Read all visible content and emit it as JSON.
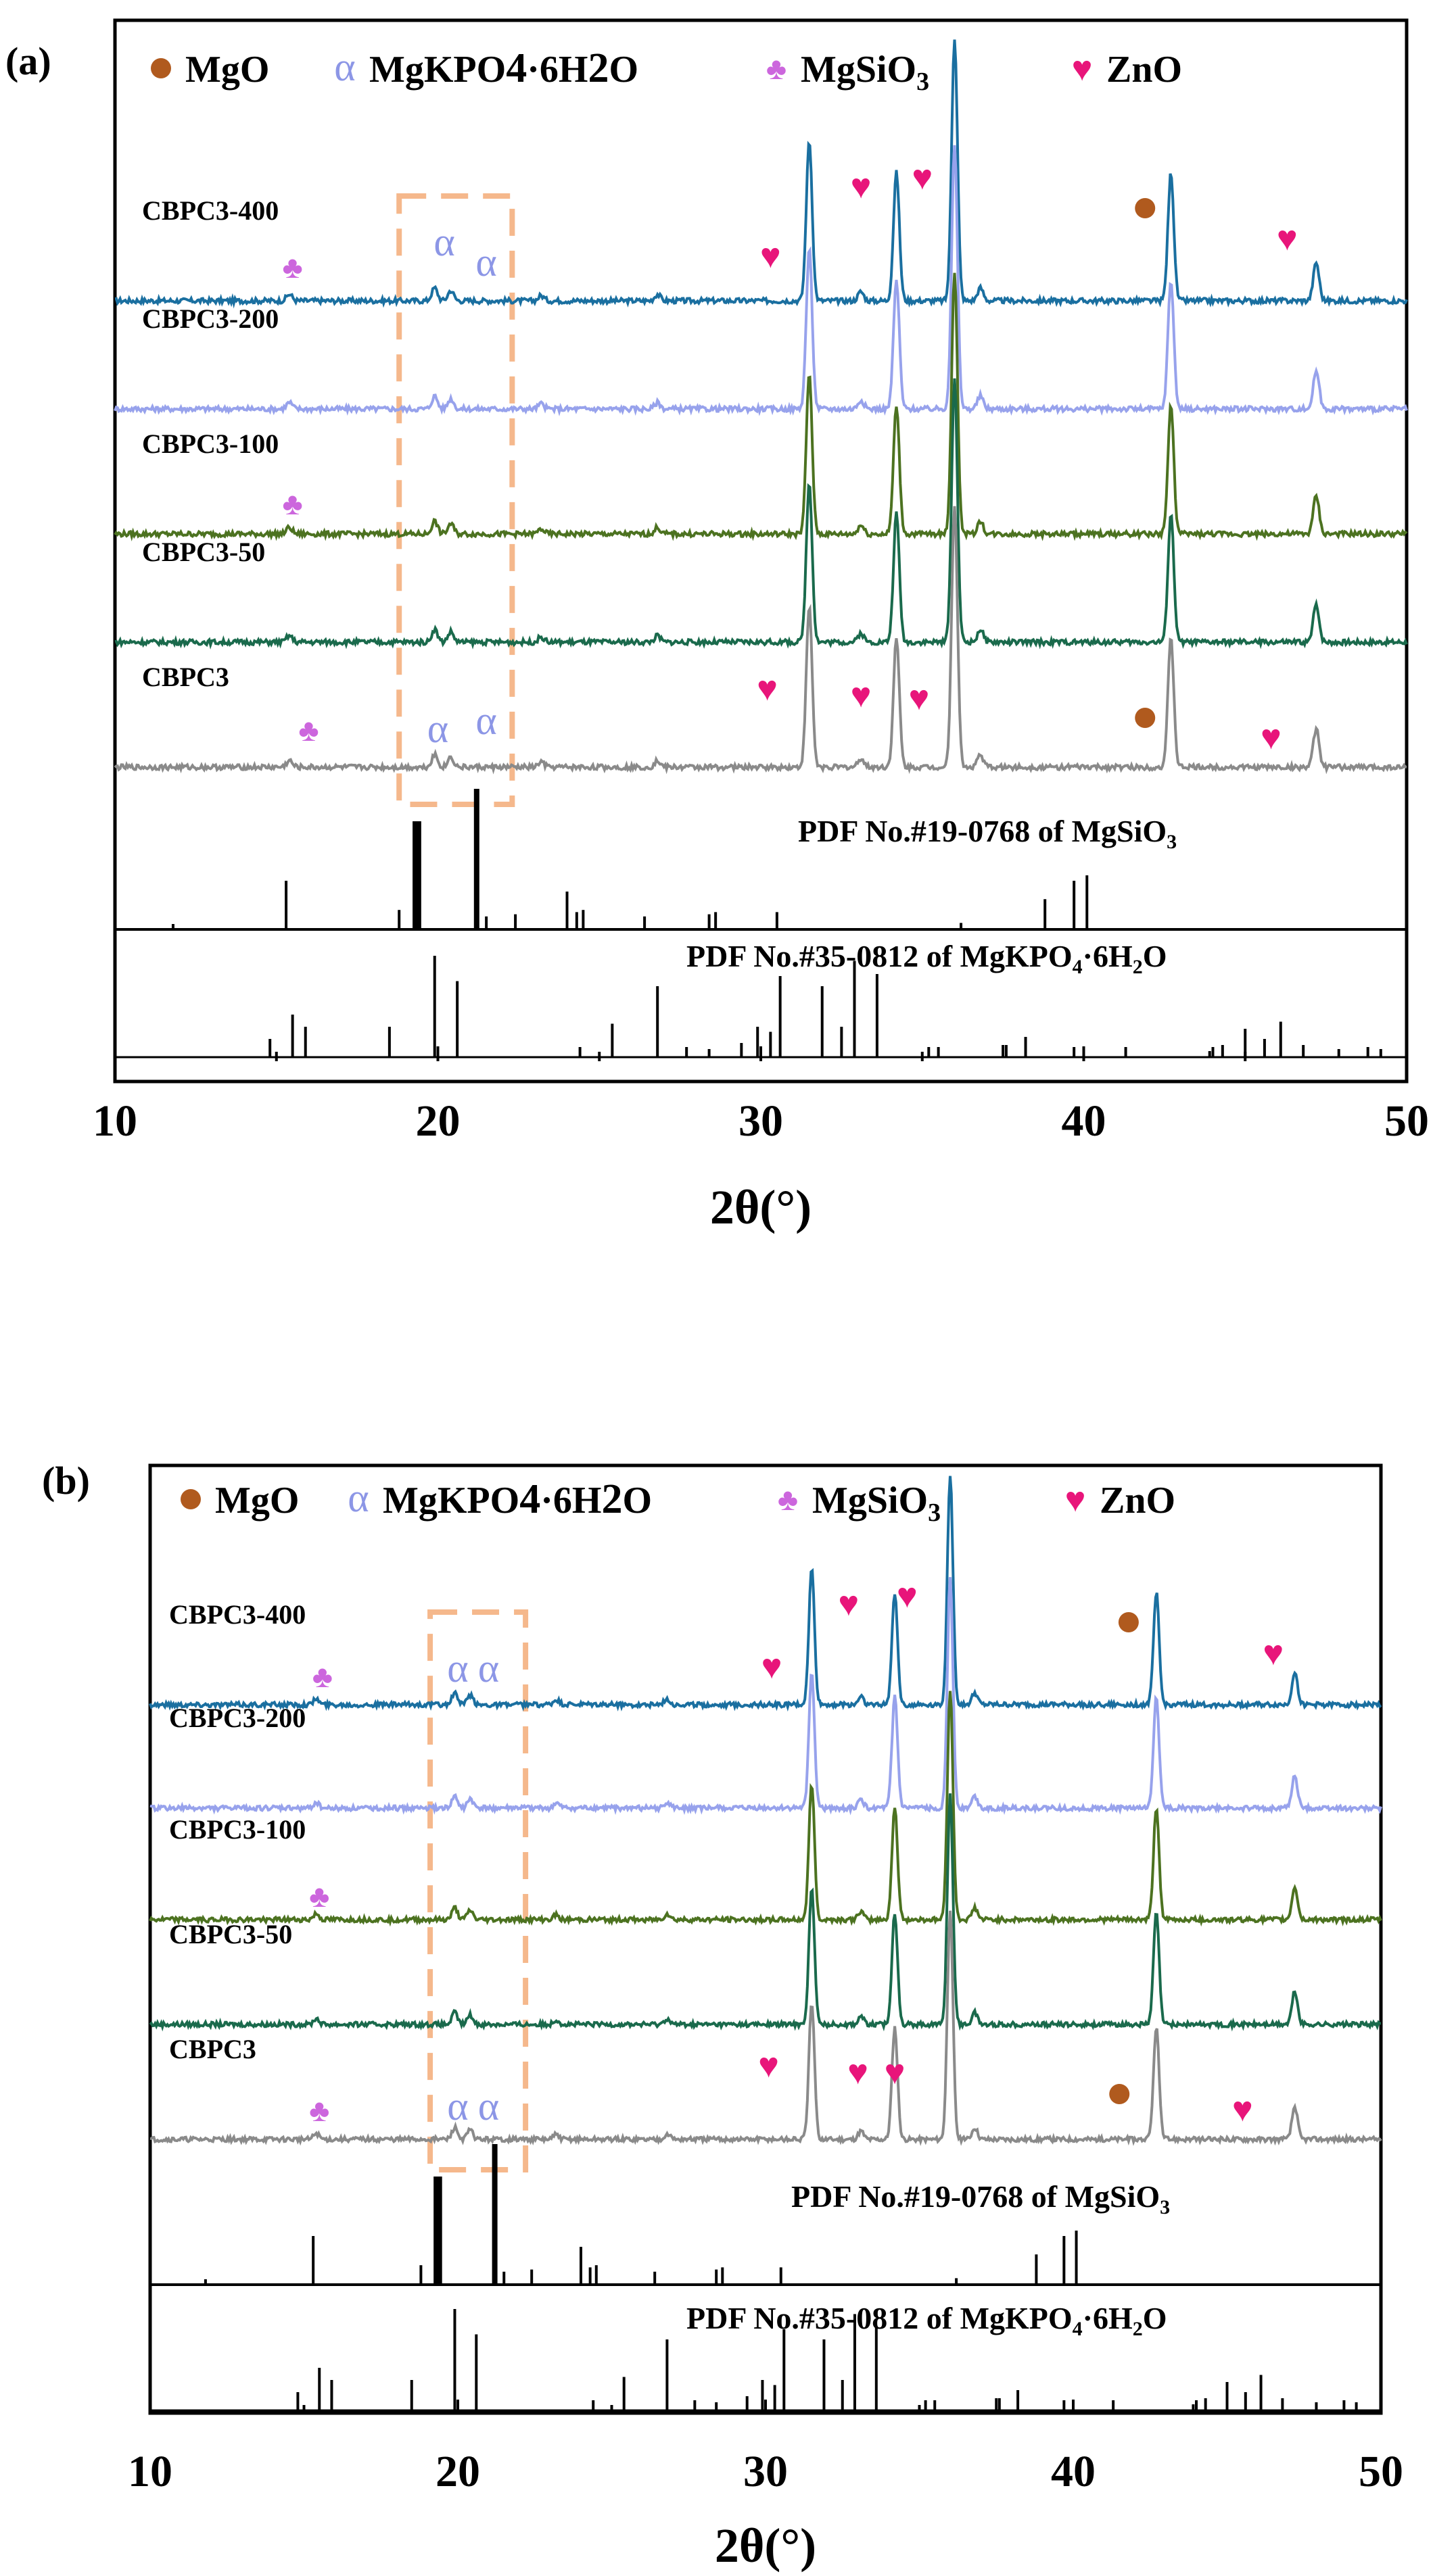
{
  "figure": {
    "x_label": "2θ(°)",
    "x_ticks": [
      10,
      20,
      30,
      40,
      50
    ]
  },
  "legend_icons": {
    "mgo_marker": "●",
    "mkp_marker": "α",
    "mgsio3_marker": "♣",
    "zno_marker": "♥"
  },
  "colors": {
    "mgo": "#b05a1e",
    "mkp": "#8c96e6",
    "mgsio3": "#cc66dd",
    "zno": "#e8157a",
    "dash_box": "#f5b88c",
    "series": [
      "#1a6fa0",
      "#97a2ec",
      "#4c7220",
      "#1a6a4c",
      "#8a8a8a"
    ],
    "reference": "#000000"
  },
  "chart_data": [
    {
      "type": "line",
      "panel_label": "(a)",
      "legend": [
        {
          "key": "mgo",
          "base": "MgO",
          "sub": ""
        },
        {
          "key": "mkp",
          "base": "MgKPO4·6H2O",
          "sub": ""
        },
        {
          "key": "mgsio3",
          "base": "MgSiO",
          "sub": "3"
        },
        {
          "key": "zno",
          "base": "ZnO",
          "sub": ""
        }
      ],
      "xlim": [
        10,
        50
      ],
      "x_ticks": [
        10,
        20,
        30,
        40,
        50
      ],
      "xlabel": "2θ(°)",
      "series": [
        {
          "name": "CBPC3-400",
          "baseline": 0.0
        },
        {
          "name": "CBPC3-200",
          "baseline": 1.0
        },
        {
          "name": "CBPC3-100",
          "baseline": 2.0
        },
        {
          "name": "CBPC3-50",
          "baseline": 3.0
        },
        {
          "name": "CBPC3",
          "baseline": 4.0
        }
      ],
      "peaks": [
        {
          "x": 19.9,
          "h": 0.1
        },
        {
          "x": 20.4,
          "h": 0.08
        },
        {
          "x": 31.5,
          "h": 1.25
        },
        {
          "x": 34.2,
          "h": 1.0
        },
        {
          "x": 36.0,
          "h": 2.05
        },
        {
          "x": 42.7,
          "h": 1.0
        },
        {
          "x": 47.2,
          "h": 0.3
        },
        {
          "x": 15.4,
          "h": 0.05
        },
        {
          "x": 23.2,
          "h": 0.04
        },
        {
          "x": 26.8,
          "h": 0.05
        },
        {
          "x": 33.1,
          "h": 0.07
        },
        {
          "x": 36.8,
          "h": 0.1
        }
      ],
      "reference_patterns": [
        {
          "label": "PDF No.#19-0768 of  MgSiO",
          "label_sub": "3",
          "lines": [
            [
              11.8,
              0.05
            ],
            [
              15.3,
              0.45
            ],
            [
              18.8,
              0.18
            ],
            [
              19.3,
              1.0
            ],
            [
              19.4,
              1.0
            ],
            [
              21.2,
              1.3
            ],
            [
              21.5,
              0.12
            ],
            [
              22.4,
              0.14
            ],
            [
              24.0,
              0.35
            ],
            [
              24.3,
              0.16
            ],
            [
              24.5,
              0.18
            ],
            [
              26.4,
              0.12
            ],
            [
              28.4,
              0.14
            ],
            [
              28.6,
              0.16
            ],
            [
              30.5,
              0.16
            ],
            [
              36.2,
              0.06
            ],
            [
              38.8,
              0.28
            ],
            [
              39.7,
              0.45
            ],
            [
              40.1,
              0.5
            ]
          ]
        },
        {
          "label": "PDF No.#35-0812 of  MgKPO",
          "label_sub": "4",
          "label_tail": "6H",
          "label_sub2": "2",
          "label_end": "O",
          "lines": [
            [
              14.8,
              0.18
            ],
            [
              15.5,
              0.42
            ],
            [
              15.9,
              0.3
            ],
            [
              18.5,
              0.3
            ],
            [
              19.9,
              1.0
            ],
            [
              20.6,
              0.75
            ],
            [
              24.4,
              0.1
            ],
            [
              25.4,
              0.33
            ],
            [
              26.8,
              0.7
            ],
            [
              27.7,
              0.1
            ],
            [
              28.4,
              0.08
            ],
            [
              29.4,
              0.14
            ],
            [
              29.9,
              0.3
            ],
            [
              30.3,
              0.25
            ],
            [
              30.6,
              0.8
            ],
            [
              31.9,
              0.7
            ],
            [
              32.5,
              0.3
            ],
            [
              32.9,
              0.95
            ],
            [
              33.6,
              0.82
            ],
            [
              35.2,
              0.1
            ],
            [
              35.5,
              0.1
            ],
            [
              37.5,
              0.12
            ],
            [
              37.6,
              0.12
            ],
            [
              38.2,
              0.2
            ],
            [
              39.7,
              0.1
            ],
            [
              41.3,
              0.1
            ],
            [
              43.9,
              0.06
            ],
            [
              44.0,
              0.1
            ],
            [
              44.3,
              0.12
            ],
            [
              45.0,
              0.28
            ],
            [
              45.6,
              0.18
            ],
            [
              46.1,
              0.35
            ],
            [
              46.8,
              0.12
            ],
            [
              47.9,
              0.08
            ],
            [
              48.8,
              0.1
            ],
            [
              49.2,
              0.08
            ]
          ]
        }
      ]
    },
    {
      "type": "line",
      "panel_label": "(b)",
      "legend": [
        {
          "key": "mgo",
          "base": "MgO",
          "sub": ""
        },
        {
          "key": "mkp",
          "base": "MgKPO4·6H2O",
          "sub": ""
        },
        {
          "key": "mgsio3",
          "base": "MgSiO",
          "sub": "3"
        },
        {
          "key": "zno",
          "base": "ZnO",
          "sub": ""
        }
      ],
      "xlim": [
        10,
        50
      ],
      "x_ticks": [
        10,
        20,
        30,
        40,
        50
      ],
      "xlabel": "2θ(°)",
      "series": [
        {
          "name": "CBPC3-400",
          "baseline": 0.0
        },
        {
          "name": "CBPC3-200",
          "baseline": 1.0
        },
        {
          "name": "CBPC3-100",
          "baseline": 2.0
        },
        {
          "name": "CBPC3-50",
          "baseline": 3.0
        },
        {
          "name": "CBPC3",
          "baseline": 4.0
        }
      ],
      "peaks": [
        {
          "x": 19.9,
          "h": 0.1
        },
        {
          "x": 20.4,
          "h": 0.08
        },
        {
          "x": 31.5,
          "h": 1.15
        },
        {
          "x": 34.2,
          "h": 0.95
        },
        {
          "x": 36.0,
          "h": 1.95
        },
        {
          "x": 42.7,
          "h": 0.95
        },
        {
          "x": 47.2,
          "h": 0.28
        },
        {
          "x": 15.4,
          "h": 0.05
        },
        {
          "x": 23.2,
          "h": 0.04
        },
        {
          "x": 26.8,
          "h": 0.05
        },
        {
          "x": 33.1,
          "h": 0.07
        },
        {
          "x": 36.8,
          "h": 0.1
        }
      ],
      "reference_patterns": [
        {
          "label": "PDF No.#19-0768 of  MgSiO",
          "label_sub": "3",
          "lines": [
            [
              11.8,
              0.05
            ],
            [
              15.3,
              0.45
            ],
            [
              18.8,
              0.18
            ],
            [
              19.3,
              1.0
            ],
            [
              19.4,
              1.0
            ],
            [
              21.2,
              1.3
            ],
            [
              21.5,
              0.12
            ],
            [
              22.4,
              0.14
            ],
            [
              24.0,
              0.35
            ],
            [
              24.3,
              0.16
            ],
            [
              24.5,
              0.18
            ],
            [
              26.4,
              0.12
            ],
            [
              28.4,
              0.14
            ],
            [
              28.6,
              0.16
            ],
            [
              30.5,
              0.16
            ],
            [
              36.2,
              0.06
            ],
            [
              38.8,
              0.28
            ],
            [
              39.7,
              0.45
            ],
            [
              40.1,
              0.5
            ]
          ]
        },
        {
          "label": "PDF No.#35-0812 of  MgKPO",
          "label_sub": "4",
          "label_tail": "6H",
          "label_sub2": "2",
          "label_end": "O",
          "lines": [
            [
              14.8,
              0.18
            ],
            [
              15.5,
              0.42
            ],
            [
              15.9,
              0.3
            ],
            [
              18.5,
              0.3
            ],
            [
              19.9,
              1.0
            ],
            [
              20.6,
              0.75
            ],
            [
              24.4,
              0.1
            ],
            [
              25.4,
              0.33
            ],
            [
              26.8,
              0.7
            ],
            [
              27.7,
              0.1
            ],
            [
              28.4,
              0.08
            ],
            [
              29.4,
              0.14
            ],
            [
              29.9,
              0.3
            ],
            [
              30.3,
              0.25
            ],
            [
              30.6,
              0.8
            ],
            [
              31.9,
              0.7
            ],
            [
              32.5,
              0.3
            ],
            [
              32.9,
              0.95
            ],
            [
              33.6,
              0.82
            ],
            [
              35.2,
              0.1
            ],
            [
              35.5,
              0.1
            ],
            [
              37.5,
              0.12
            ],
            [
              37.6,
              0.12
            ],
            [
              38.2,
              0.2
            ],
            [
              39.7,
              0.1
            ],
            [
              41.3,
              0.1
            ],
            [
              43.9,
              0.06
            ],
            [
              44.0,
              0.1
            ],
            [
              44.3,
              0.12
            ],
            [
              45.0,
              0.28
            ],
            [
              45.6,
              0.18
            ],
            [
              46.1,
              0.35
            ],
            [
              46.8,
              0.12
            ],
            [
              47.9,
              0.08
            ],
            [
              48.8,
              0.1
            ],
            [
              49.2,
              0.08
            ]
          ]
        }
      ]
    }
  ]
}
